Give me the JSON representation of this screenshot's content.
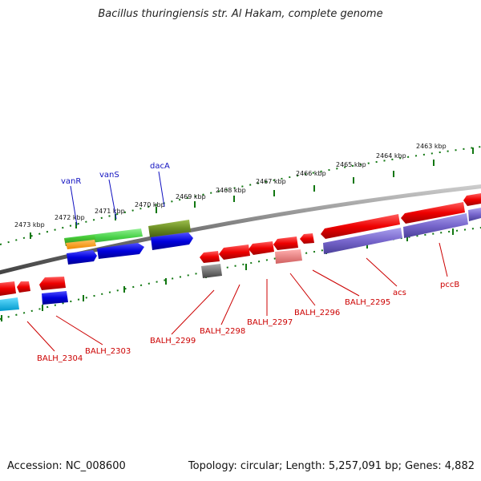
{
  "title": "Bacillus thuringiensis str. Al Hakam, complete genome",
  "footer": {
    "accession": "Accession: NC_008600",
    "summary": "Topology: circular; Length: 5,257,091 bp; Genes: 4,882"
  },
  "scale_labels": [
    "2473 kbp",
    "2472 kbp",
    "2471 kbp",
    "2470 kbp",
    "2469 kbp",
    "2468 kbp",
    "2467 kbp",
    "2466 kbp",
    "2465 kbp",
    "2464 kbp",
    "2463 kbp"
  ],
  "gene_labels": {
    "forward": [
      "vanR",
      "vanS",
      "dacA"
    ],
    "reverse": [
      "BALH_2304",
      "BALH_2303",
      "BALH_2299",
      "BALH_2298",
      "BALH_2297",
      "BALH_2296",
      "BALH_2295",
      "acs",
      "pccB"
    ]
  },
  "colors": {
    "cds": "#ee0000",
    "protein_blue": "#0000dd",
    "cog_green": "#33cc33",
    "cog_purple": "#7766cc",
    "cog_olive": "#6b8e23",
    "cog_orange": "#ff9900",
    "cog_cyan": "#00bbee",
    "cog_salmon": "#f08080",
    "cog_gray": "#666666",
    "tick_green": "#117711",
    "label_blue": "#1010c0",
    "label_red": "#cc0000"
  }
}
